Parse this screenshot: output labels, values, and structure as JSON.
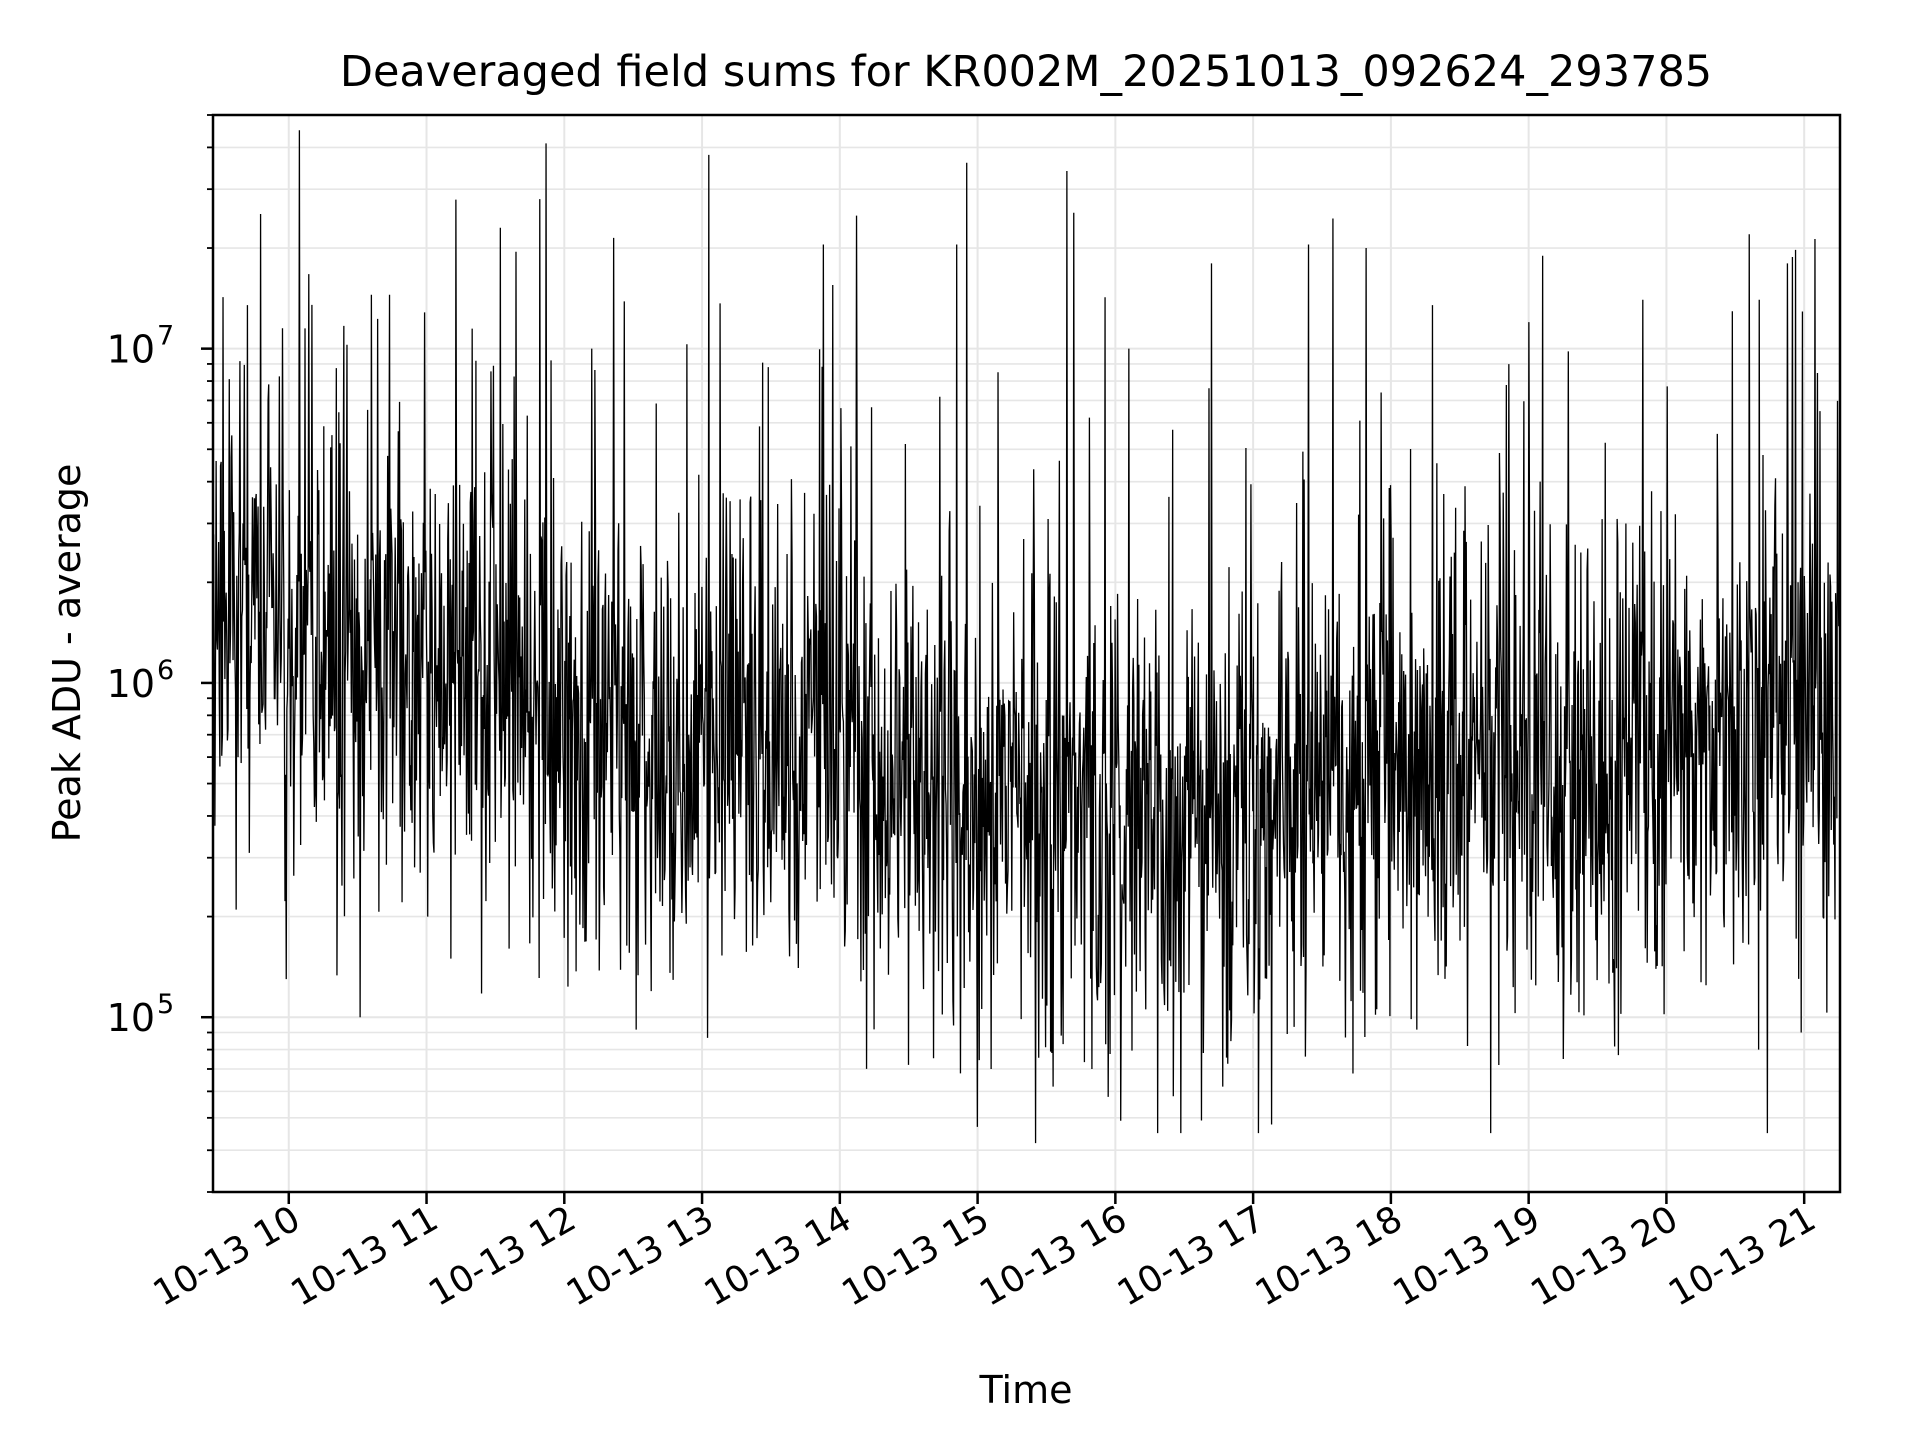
{
  "chart_data": {
    "type": "line",
    "title": "Deaveraged field sums for KR002M_20251013_092624_293785",
    "xlabel": "Time",
    "ylabel": "Peak ADU - average",
    "yscale": "log",
    "ylim": [
      30000,
      50000000
    ],
    "xlim_hours": [
      9.45,
      21.26
    ],
    "grid": true,
    "line_color": "#000000",
    "grid_color": "#e6e6e6",
    "x_ticks": [
      {
        "value": 10,
        "label": "10-13 10"
      },
      {
        "value": 11,
        "label": "10-13 11"
      },
      {
        "value": 12,
        "label": "10-13 12"
      },
      {
        "value": 13,
        "label": "10-13 13"
      },
      {
        "value": 14,
        "label": "10-13 14"
      },
      {
        "value": 15,
        "label": "10-13 15"
      },
      {
        "value": 16,
        "label": "10-13 16"
      },
      {
        "value": 17,
        "label": "10-13 17"
      },
      {
        "value": 18,
        "label": "10-13 18"
      },
      {
        "value": 19,
        "label": "10-13 19"
      },
      {
        "value": 20,
        "label": "10-13 20"
      },
      {
        "value": 21,
        "label": "10-13 21"
      }
    ],
    "y_ticks": [
      {
        "value": 100000,
        "base": "10",
        "exp": "5"
      },
      {
        "value": 1000000,
        "base": "10",
        "exp": "6"
      },
      {
        "value": 10000000,
        "base": "10",
        "exp": "7"
      }
    ],
    "trend": {
      "x": [
        9.45,
        10.0,
        10.5,
        11.0,
        11.5,
        12.0,
        12.5,
        13.0,
        13.5,
        14.0,
        14.5,
        15.0,
        15.5,
        16.0,
        16.5,
        17.0,
        17.5,
        18.0,
        18.5,
        19.0,
        19.5,
        20.0,
        20.5,
        21.0,
        21.26
      ],
      "y": [
        1800000,
        1500000,
        1100000,
        1200000,
        1100000,
        750000,
        600000,
        650000,
        550000,
        620000,
        480000,
        380000,
        420000,
        380000,
        370000,
        420000,
        500000,
        520000,
        560000,
        550000,
        500000,
        560000,
        700000,
        900000,
        1100000
      ]
    },
    "spikes": [
      {
        "x": 9.98,
        "y": 18000000
      },
      {
        "x": 10.12,
        "y": 11500000
      },
      {
        "x": 10.6,
        "y": 14500000
      },
      {
        "x": 10.73,
        "y": 14500000
      },
      {
        "x": 11.65,
        "y": 19500000
      },
      {
        "x": 11.82,
        "y": 28000000
      },
      {
        "x": 13.05,
        "y": 38000000
      },
      {
        "x": 13.88,
        "y": 20500000
      },
      {
        "x": 14.12,
        "y": 25000000
      },
      {
        "x": 14.85,
        "y": 20500000
      },
      {
        "x": 14.92,
        "y": 36000000
      },
      {
        "x": 15.65,
        "y": 34000000
      },
      {
        "x": 15.7,
        "y": 25500000
      },
      {
        "x": 16.7,
        "y": 18000000
      },
      {
        "x": 17.4,
        "y": 20500000
      },
      {
        "x": 17.58,
        "y": 24500000
      },
      {
        "x": 17.82,
        "y": 20000000
      },
      {
        "x": 19.83,
        "y": 14000000
      },
      {
        "x": 20.6,
        "y": 22000000
      },
      {
        "x": 20.88,
        "y": 18000000
      },
      {
        "x": 15.15,
        "y": 8500000
      },
      {
        "x": 12.2,
        "y": 10000000
      },
      {
        "x": 9.7,
        "y": 13500000
      },
      {
        "x": 18.3,
        "y": 13500000
      },
      {
        "x": 19.0,
        "y": 12000000
      },
      {
        "x": 16.1,
        "y": 10000000
      },
      {
        "x": 13.95,
        "y": 15500000
      }
    ],
    "dips": [
      {
        "x": 9.98,
        "y": 130000
      },
      {
        "x": 10.52,
        "y": 100000
      },
      {
        "x": 14.5,
        "y": 72000
      },
      {
        "x": 15.1,
        "y": 70000
      },
      {
        "x": 15.42,
        "y": 42000
      },
      {
        "x": 15.55,
        "y": 62000
      },
      {
        "x": 15.83,
        "y": 70000
      },
      {
        "x": 16.42,
        "y": 58000
      },
      {
        "x": 16.78,
        "y": 62000
      },
      {
        "x": 19.25,
        "y": 75000
      },
      {
        "x": 19.65,
        "y": 77000
      },
      {
        "x": 20.67,
        "y": 80000
      },
      {
        "x": 14.25,
        "y": 92000
      },
      {
        "x": 20.98,
        "y": 90000
      }
    ],
    "noise_seed": 293785,
    "n_points": 2600
  }
}
